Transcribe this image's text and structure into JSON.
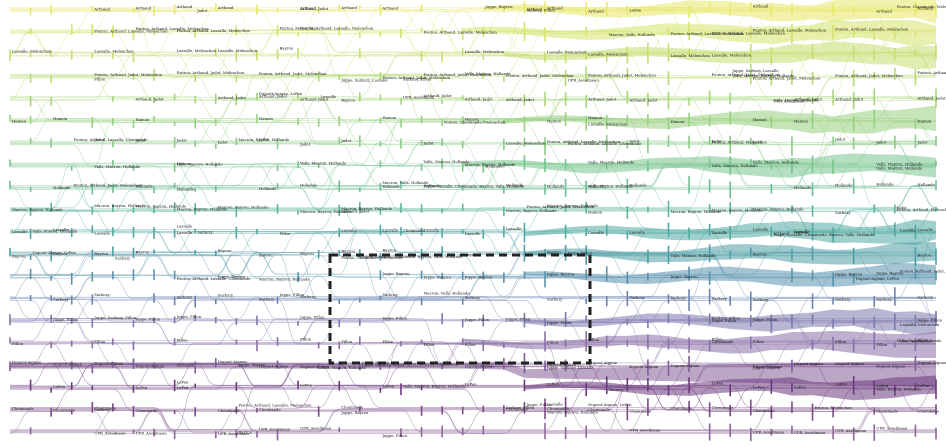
{
  "diagram": {
    "type": "storyline",
    "palette": {
      "yellow": "#dbe46a",
      "lime": "#b8dc6c",
      "green": "#86cf86",
      "teal": "#4fa7a1",
      "blue": "#5c8fb3",
      "indigo": "#6f72a8",
      "purple": "#8e6aa3",
      "deep": "#5a2a6e",
      "highlight": "#222222"
    },
    "rows": [
      {
        "label": "Arthaud",
        "color": "#e7e86a"
      },
      {
        "label": "Poutou, Arthaud, Lassalle, Melenchon",
        "color": "#d6e36c"
      },
      {
        "label": "Lassalle, Melenchon",
        "color": "#c4df6f"
      },
      {
        "label": "Poutou, Arthaud, Jadot, Melenchon",
        "color": "#b6db72"
      },
      {
        "label": "Arthaud, Jadot",
        "color": "#a6d678"
      },
      {
        "label": "Hamon",
        "color": "#98d07f"
      },
      {
        "label": "Jadot",
        "color": "#8bcb86"
      },
      {
        "label": "Valls, Macron, Hollande",
        "color": "#77c48c"
      },
      {
        "label": "Hollande",
        "color": "#6fbf93"
      },
      {
        "label": "Macron, Bayrou, Hollande",
        "color": "#5db59c"
      },
      {
        "label": "Lassalle",
        "color": "#51a9a1"
      },
      {
        "label": "Bayrou",
        "color": "#4e9ea6"
      },
      {
        "label": "Juppe, Bayrou",
        "color": "#5a92ae"
      },
      {
        "label": "Sarkozy",
        "color": "#6c84b0"
      },
      {
        "label": "Juppe, Fillon",
        "color": "#7b79ad"
      },
      {
        "label": "Fillon",
        "color": "#8a70a8"
      },
      {
        "label": "Dupont-Aignan",
        "color": "#7f5b98"
      },
      {
        "label": "LePen",
        "color": "#6b3a7e"
      },
      {
        "label": "Cheminade",
        "color": "#7a4a86"
      },
      {
        "label": "UPR_Asselineau",
        "color": "#8d6699"
      }
    ],
    "legend_texts": [
      "Arthaud",
      "Poutou, Arthaud, Lassalle, Melenchon",
      "Lassalle, Melenchon",
      "Poutou, Arthaud, Jadot, Melenchon",
      "Arthaud, Jadot",
      "Hamon",
      "Jadot",
      "Valls, Macron, Hollande",
      "Hollande",
      "Macron, Bayrou, Hollande",
      "Lassalle",
      "Bayrou",
      "Juppe, Bayrou",
      "Sarkozy",
      "Juppe, Fillon",
      "Fillon",
      "LePen",
      "Cheminade",
      "UPR_Asselineau",
      "Poutou, Melenchon",
      "Poutou, Arthaud, Lassalle, Cheminade",
      "Poutou, Arthaud, Melenchon",
      "Poutou, Cheminade, Melenchon",
      "Macron, Valls, Hollande",
      "Valls, Poutou, Hollande",
      "Valls, Hamon, Hollande",
      "Valls, Macron, Bayrou, Hollande",
      "Juppe, Lassalle, Cheminade, Bayrou, Valls, Hollande",
      "Juppe, Sarkozy, Fillon",
      "Juppe, Sarkozy, Lassalle",
      "Sarkozy, Fillon",
      "Dupont-Aignan, LePen",
      "Juppe, Bayrou"
    ],
    "time_steps": 46,
    "highlight_box": true
  }
}
